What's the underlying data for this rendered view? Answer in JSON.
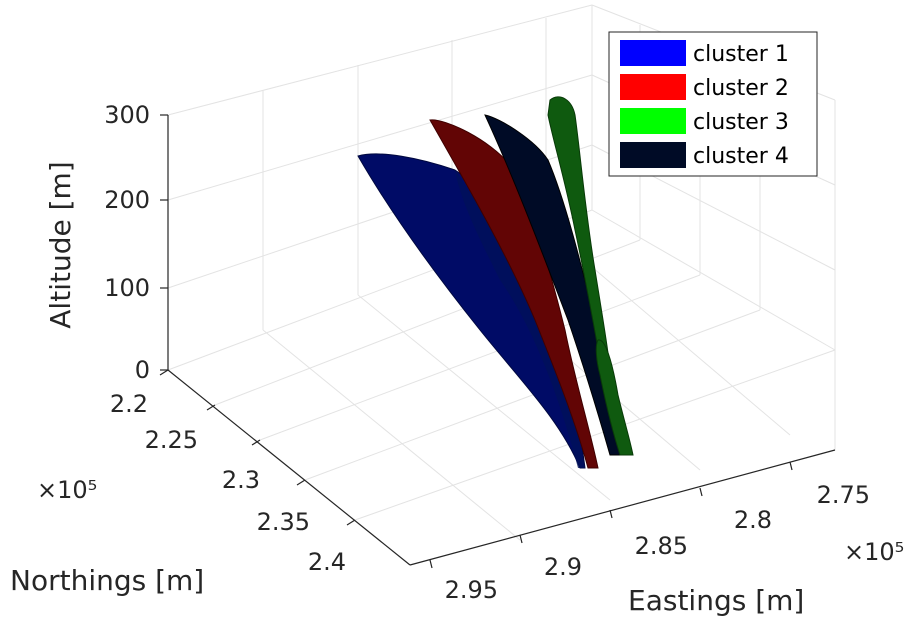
{
  "chart_data": {
    "type": "surface3d",
    "xlabel": "Eastings [m]",
    "ylabel": "Northings [m]",
    "zlabel": "Altitude [m]",
    "x_exponent": "×10⁵",
    "y_exponent": "×10⁵",
    "x_ticks": [
      "2.75",
      "2.8",
      "2.85",
      "2.9",
      "2.95"
    ],
    "y_ticks": [
      "2.2",
      "2.25",
      "2.3",
      "2.35",
      "2.4"
    ],
    "z_ticks": [
      "0",
      "100",
      "200",
      "300"
    ],
    "xlim": [
      2.73,
      2.97
    ],
    "ylim": [
      2.2,
      2.42
    ],
    "zlim": [
      0,
      300
    ],
    "grid": true,
    "legend_position": "top-right",
    "series": [
      {
        "name": "cluster 1",
        "color": "#0000ff",
        "surface_color": "#000b66",
        "top_altitude": 250,
        "base_altitude": 0
      },
      {
        "name": "cluster 2",
        "color": "#ff0000",
        "surface_color": "#620505",
        "top_altitude": 290,
        "base_altitude": 0
      },
      {
        "name": "cluster 3",
        "color": "#00ff00",
        "surface_color": "#0f5a0f",
        "top_altitude": 310,
        "base_altitude": 0
      },
      {
        "name": "cluster 4",
        "color": "#000b26",
        "surface_color": "#000b26",
        "top_altitude": 290,
        "base_altitude": 0
      }
    ]
  }
}
